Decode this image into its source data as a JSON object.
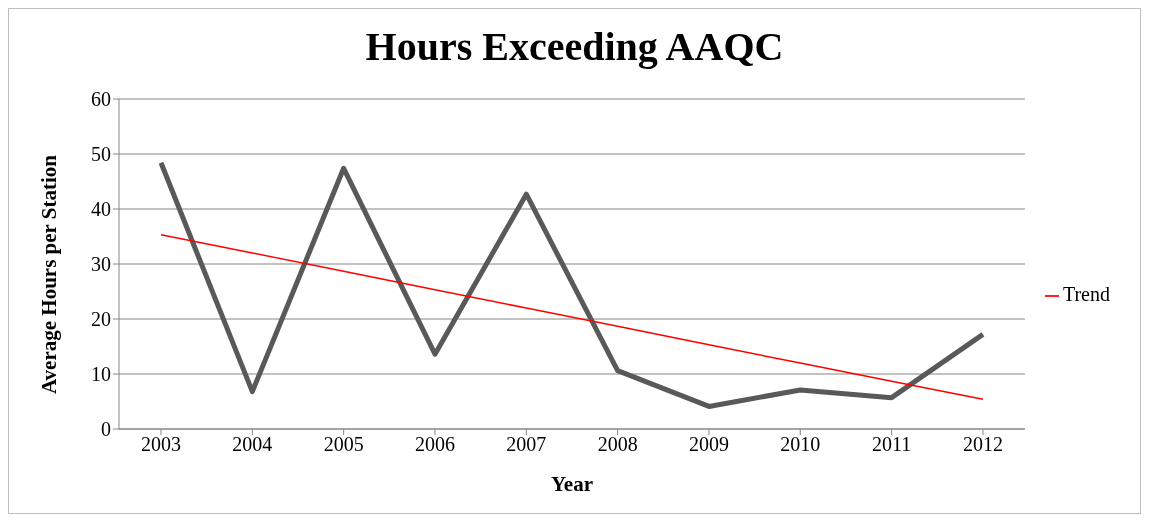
{
  "chart_data": {
    "type": "line",
    "title": "Hours Exceeding AAQC",
    "xlabel": "Year",
    "ylabel": "Average Hours per Station",
    "categories": [
      "2003",
      "2004",
      "2005",
      "2006",
      "2007",
      "2008",
      "2009",
      "2010",
      "2011",
      "2012"
    ],
    "series": [
      {
        "color": "#595959",
        "values": [
          48.4,
          6.8,
          47.4,
          13.6,
          42.7,
          10.6,
          4.1,
          7.1,
          5.7,
          17.2
        ]
      },
      {
        "name": "Trend",
        "type": "line",
        "color": "#ff0000",
        "values": [
          35.3,
          32.0,
          28.7,
          25.3,
          22.0,
          18.7,
          15.3,
          12.0,
          8.7,
          5.4
        ]
      }
    ],
    "ylim": [
      0,
      60
    ],
    "yticks": [
      0,
      10,
      20,
      30,
      40,
      50,
      60
    ],
    "grid": "y",
    "legend": "right",
    "marker": "none"
  }
}
